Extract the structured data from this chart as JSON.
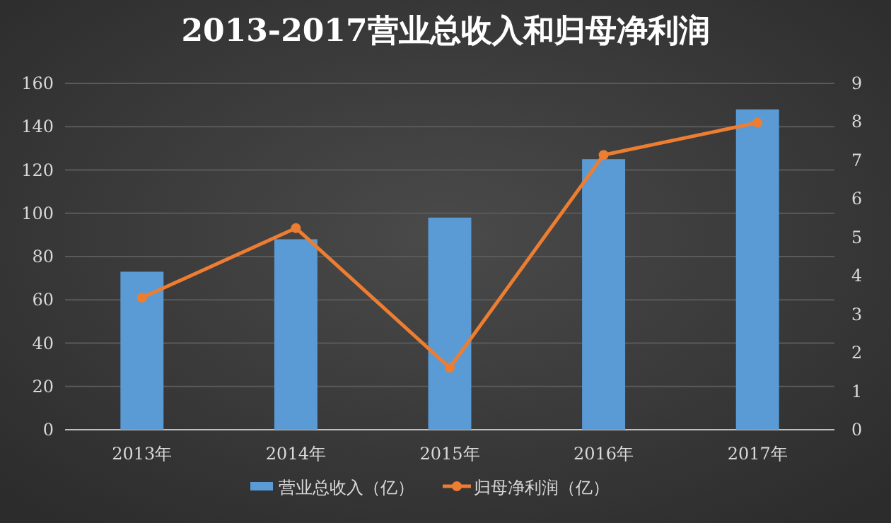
{
  "chart_data": {
    "type": "bar",
    "title": "2013-2017营业总收入和归母净利润",
    "categories": [
      "2013年",
      "2014年",
      "2015年",
      "2016年",
      "2017年"
    ],
    "series": [
      {
        "name": "营业总收入（亿）",
        "color": "#5b9bd5",
        "values": [
          73,
          88,
          98,
          125,
          148
        ]
      },
      {
        "name": "归母净利润（亿）",
        "type": "line",
        "axis": "y2",
        "color": "#ed7d31",
        "marker": "circle",
        "values": [
          3.43,
          5.24,
          1.61,
          7.14,
          7.98
        ]
      }
    ],
    "ylim": [
      0,
      160
    ],
    "yticks": [
      0,
      20,
      40,
      60,
      80,
      100,
      120,
      140,
      160
    ],
    "y2lim": [
      0,
      9
    ],
    "y2ticks": [
      0,
      1,
      2,
      3,
      4,
      5,
      6,
      7,
      8,
      9
    ],
    "grid": "y",
    "legend": "bottom"
  }
}
